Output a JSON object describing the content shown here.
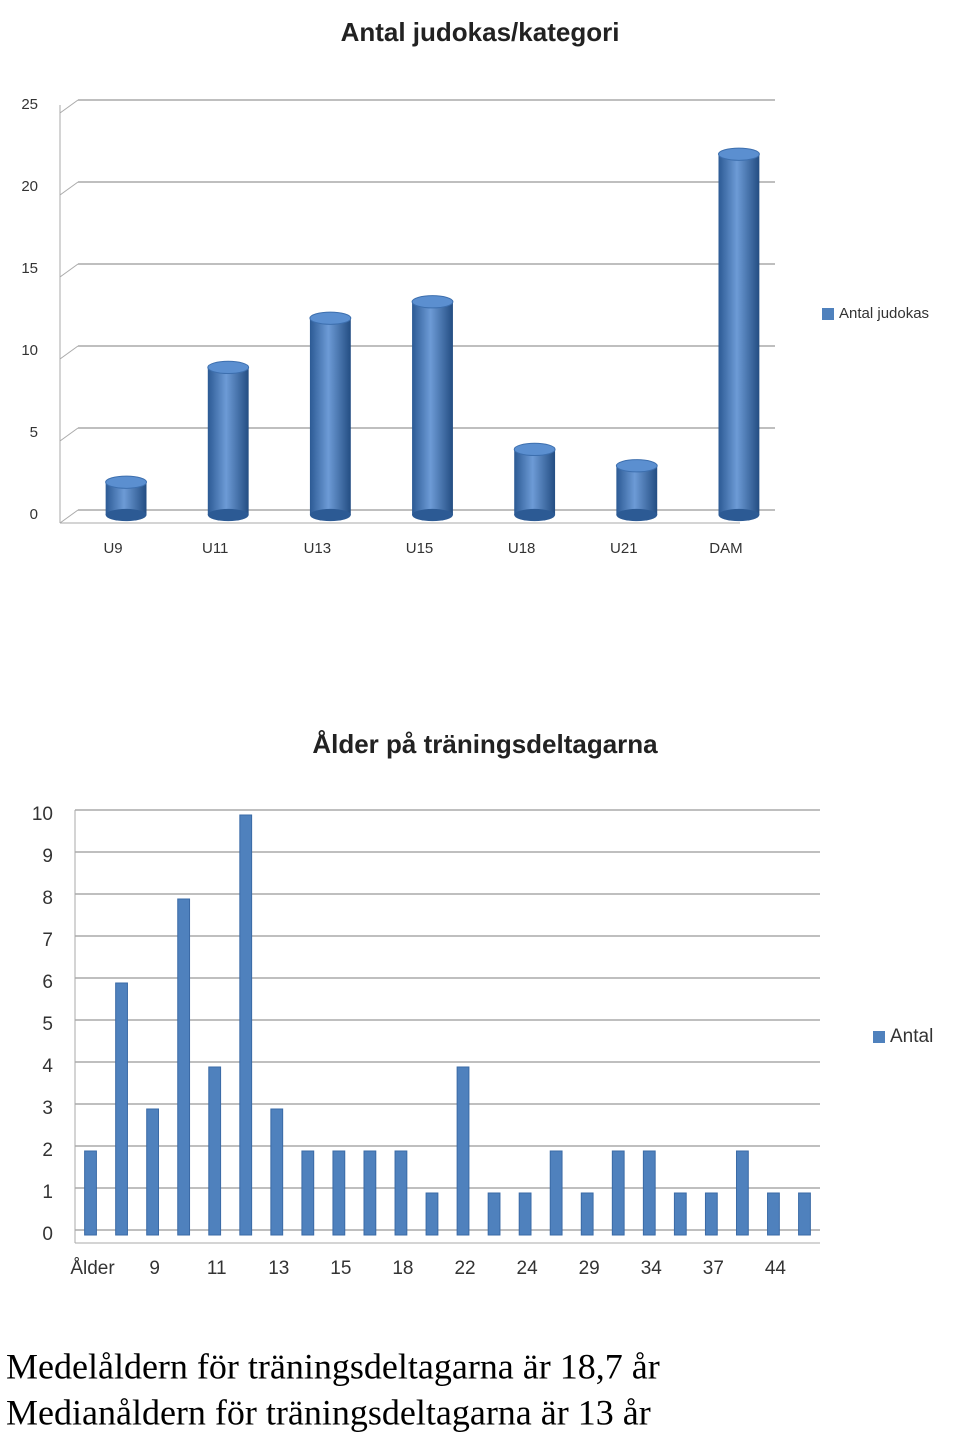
{
  "chart_data": [
    {
      "type": "bar",
      "three_d": true,
      "title": "Antal judokas/kategori",
      "categories": [
        "U9",
        "U11",
        "U13",
        "U15",
        "U18",
        "U21",
        "DAM"
      ],
      "series": [
        {
          "name": "Antal judokas",
          "color": "#4f81bd",
          "values": [
            2,
            9,
            12,
            13,
            4,
            3,
            22
          ]
        }
      ],
      "ylim": [
        0,
        25
      ],
      "yticks": [
        0,
        5,
        10,
        15,
        20,
        25
      ],
      "grid": true,
      "legend": "right"
    },
    {
      "type": "bar",
      "three_d": false,
      "title": "Ålder på träningsdeltagarna",
      "categories": [
        "Ålder",
        null,
        "9",
        null,
        "11",
        null,
        "13",
        null,
        "15",
        null,
        "18",
        null,
        "22",
        null,
        "24",
        null,
        "29",
        null,
        "34",
        null,
        "37",
        null,
        "44",
        null
      ],
      "series": [
        {
          "name": "Antal",
          "color": "#4f81bd",
          "values": [
            2,
            6,
            3,
            8,
            4,
            10,
            3,
            2,
            2,
            2,
            2,
            1,
            4,
            1,
            1,
            2,
            1,
            2,
            2,
            1,
            1,
            2,
            1,
            1
          ]
        }
      ],
      "ylim": [
        0,
        10
      ],
      "yticks": [
        0,
        1,
        2,
        3,
        4,
        5,
        6,
        7,
        8,
        9,
        10
      ],
      "grid": true,
      "legend": "right"
    }
  ],
  "notes": [
    "Medelåldern för träningsdeltagarna är 18,7 år",
    "Medianåldern för träningsdeltagarna är 13 år"
  ]
}
